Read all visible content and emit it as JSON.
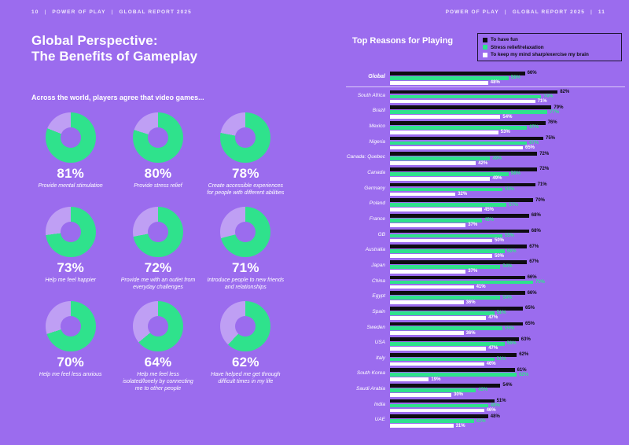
{
  "colors": {
    "background": "#9b6cee",
    "green": "#2fe28c",
    "lavender": "#bf9ff4",
    "black": "#0e0c12",
    "white": "#ffffff"
  },
  "header_left": {
    "page": "10",
    "brand": "POWER OF PLAY",
    "report": "GLOBAL REPORT 2025"
  },
  "header_right": {
    "brand": "POWER OF PLAY",
    "report": "GLOBAL REPORT 2025",
    "page": "11"
  },
  "intro": {
    "title_line1": "Global Perspective:",
    "title_line2": "The Benefits of Gameplay",
    "lead": "Across the world, players agree that video games..."
  },
  "chart_data": [
    {
      "type": "pie",
      "subtype": "donut-grid",
      "title": "Across the world, players agree that video games...",
      "values": [
        81,
        80,
        78,
        73,
        72,
        71,
        70,
        64,
        62
      ],
      "labels": [
        "Provide mental stimulation",
        "Provide stress relief",
        "Create accessible experiences for people with different abilities",
        "Help me feel happier",
        "Provide me with an outlet from everyday challenges",
        "Introduce people to new friends and relationships",
        "Help me feel less anxious",
        "Help me feel less isolated/lonely by connecting me to other people",
        "Have helped me get through difficult times in my life"
      ],
      "slice_colors": {
        "filled": "#2fe28c",
        "remainder": "#bf9ff4"
      }
    },
    {
      "type": "bar",
      "orientation": "horizontal",
      "title": "Top Reasons for Playing",
      "legend_position": "top-right",
      "value_labels": true,
      "xlim": [
        0,
        100
      ],
      "divider_after": "Global",
      "categories": [
        "Global",
        "South Africa",
        "Brazil",
        "Mexico",
        "Nigeria",
        "Canada: Quebec",
        "Canada",
        "Germany",
        "Poland",
        "France",
        "GB",
        "Australia",
        "Japan",
        "China",
        "Egypt",
        "Spain",
        "Sweden",
        "USA",
        "Italy",
        "South Korea",
        "Saudi Arabia",
        "India",
        "UAE"
      ],
      "series": [
        {
          "name": "To have fun",
          "color": "#0e0c12",
          "values": [
            66,
            82,
            79,
            76,
            75,
            72,
            72,
            71,
            70,
            68,
            68,
            67,
            67,
            66,
            66,
            65,
            65,
            63,
            62,
            61,
            54,
            51,
            48
          ]
        },
        {
          "name": "Stress relief/relaxation",
          "color": "#2fe28c",
          "values": [
            58,
            74,
            77,
            67,
            67,
            49,
            58,
            55,
            57,
            45,
            55,
            56,
            54,
            70,
            54,
            51,
            55,
            56,
            51,
            62,
            42,
            48,
            41
          ]
        },
        {
          "name": "To keep my mind sharp/exercise my brain",
          "color": "#ffffff",
          "values": [
            48,
            71,
            54,
            53,
            65,
            42,
            49,
            32,
            45,
            37,
            50,
            50,
            37,
            41,
            36,
            47,
            36,
            47,
            46,
            19,
            30,
            46,
            31
          ]
        }
      ]
    }
  ]
}
